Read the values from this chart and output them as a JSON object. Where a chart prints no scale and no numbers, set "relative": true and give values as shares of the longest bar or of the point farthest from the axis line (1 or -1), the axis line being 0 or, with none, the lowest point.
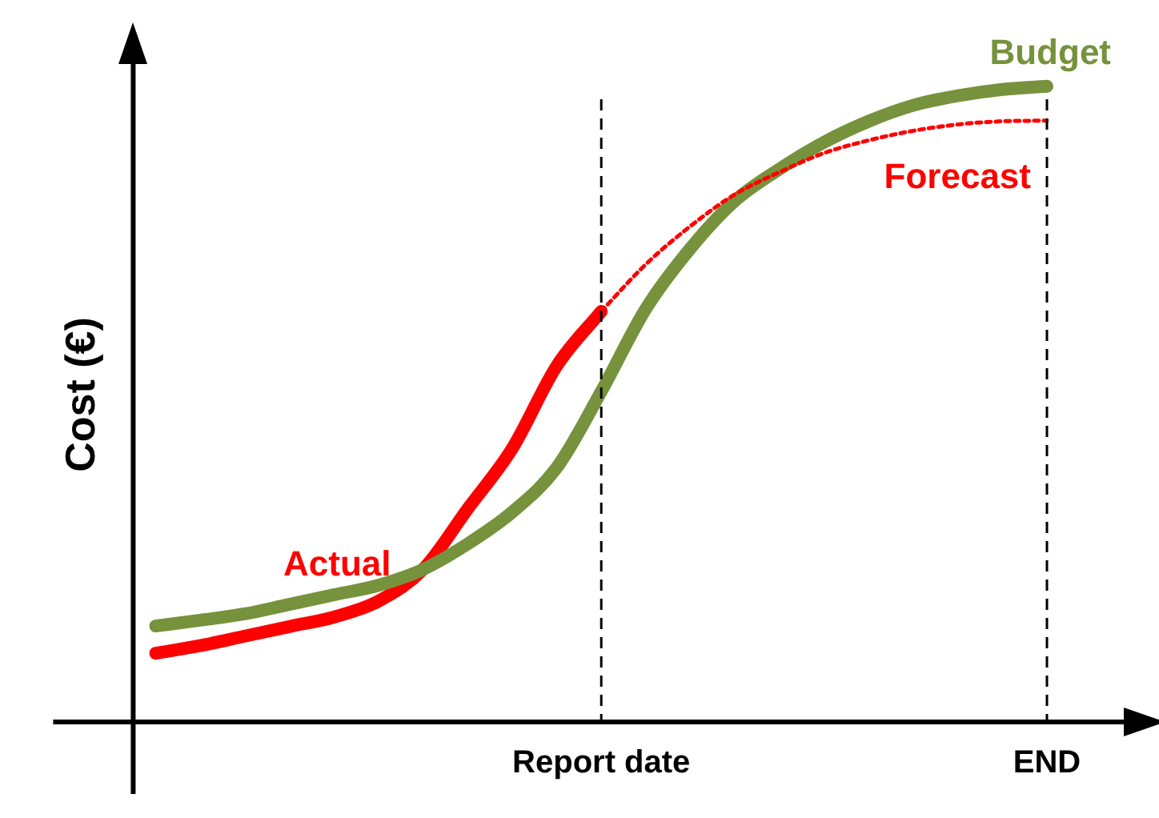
{
  "chart_data": {
    "type": "line",
    "relative": true,
    "ylabel": "Cost (€)",
    "legend": false,
    "grid": false,
    "tick_labels": "x",
    "categories": [
      null,
      null,
      null,
      null,
      null,
      null,
      null,
      null,
      null,
      null,
      "Report date",
      null,
      null,
      null,
      null,
      null,
      null,
      null,
      null,
      null,
      "END"
    ],
    "ref_lines": [
      {
        "axis": "x",
        "value": "Report date",
        "line_style": "dashed",
        "color": "#000000"
      },
      {
        "axis": "x",
        "value": "END",
        "line_style": "dashed",
        "color": "#000000"
      }
    ],
    "series": [
      {
        "name": "Budget",
        "color": "#76923c",
        "line_style": "solid",
        "values": [
          0.151,
          0.16,
          0.17,
          0.185,
          0.2,
          0.215,
          0.24,
          0.28,
          0.33,
          0.4,
          0.52,
          0.65,
          0.745,
          0.82,
          0.87,
          0.912,
          0.945,
          0.97,
          0.985,
          0.995,
          1
        ]
      },
      {
        "name": "Forecast",
        "color": "#ff0000",
        "line_style": "dotted",
        "values": [
          null,
          null,
          null,
          null,
          null,
          null,
          null,
          null,
          null,
          null,
          0.646,
          0.72,
          0.78,
          0.83,
          0.865,
          0.895,
          0.915,
          0.93,
          0.94,
          0.945,
          0.946
        ]
      },
      {
        "name": "Actual",
        "color": "#ff0000",
        "line_style": "solid",
        "values": [
          0.108,
          0.12,
          0.135,
          0.15,
          0.165,
          0.19,
          0.24,
          0.335,
          0.43,
          0.56,
          0.646,
          null,
          null,
          null,
          null,
          null,
          null,
          null,
          null,
          null,
          null
        ]
      }
    ]
  }
}
